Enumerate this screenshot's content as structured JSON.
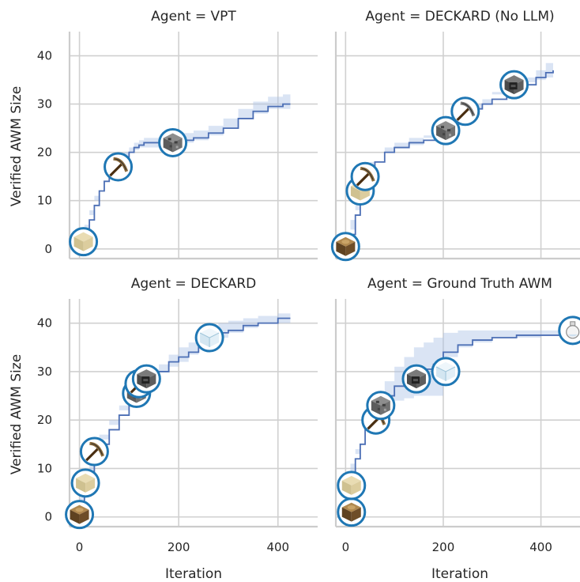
{
  "chart_data": [
    {
      "type": "line",
      "title": "Agent = VPT",
      "xlabel": "",
      "ylabel": "Verified AWM Size",
      "xlim": [
        -20,
        480
      ],
      "ylim": [
        -2,
        45
      ],
      "x_ticks": [
        0,
        200,
        400
      ],
      "y_ticks": [
        0,
        10,
        20,
        30,
        40
      ],
      "grid": true,
      "series": [
        {
          "x": [
            0,
            10,
            20,
            30,
            40,
            50,
            60,
            70,
            80,
            90,
            100,
            110,
            120,
            130,
            150,
            180,
            200,
            230,
            260,
            290,
            320,
            350,
            380,
            410,
            425
          ],
          "y": [
            1,
            3,
            6,
            9,
            12,
            14,
            16,
            17,
            18,
            19,
            20,
            21,
            21.5,
            22,
            22,
            22,
            22.5,
            23,
            24,
            25,
            27,
            28.5,
            29.5,
            30,
            30
          ],
          "y_lower": [
            0.5,
            2,
            5,
            8,
            11,
            13,
            15,
            16,
            17,
            18,
            19,
            20,
            20.5,
            21,
            21,
            21,
            21,
            22,
            22.5,
            23.5,
            25,
            27,
            28,
            29,
            29
          ],
          "y_upper": [
            1.5,
            4,
            7,
            10,
            13,
            15,
            17,
            18,
            19,
            20,
            21,
            22,
            22.5,
            23,
            23,
            23,
            24,
            24.5,
            25.5,
            27,
            29,
            30.5,
            31.5,
            32,
            32
          ]
        }
      ],
      "annotations": [
        {
          "x": 8,
          "y": 1.5,
          "icon": "sand-block-icon"
        },
        {
          "x": 78,
          "y": 17,
          "icon": "wooden-pickaxe-icon"
        },
        {
          "x": 188,
          "y": 22,
          "icon": "cobblestone-icon"
        }
      ]
    },
    {
      "type": "line",
      "title": "Agent = DECKARD (No LLM)",
      "xlabel": "",
      "ylabel": "",
      "xlim": [
        -20,
        480
      ],
      "ylim": [
        -2,
        45
      ],
      "x_ticks": [
        0,
        200,
        400
      ],
      "y_ticks": [
        0,
        10,
        20,
        30,
        40
      ],
      "grid": true,
      "series": [
        {
          "x": [
            0,
            10,
            20,
            30,
            40,
            50,
            60,
            80,
            100,
            130,
            160,
            200,
            220,
            240,
            260,
            280,
            300,
            330,
            360,
            390,
            410,
            425
          ],
          "y": [
            0,
            3,
            7,
            12,
            15,
            17,
            18,
            20,
            21,
            22,
            22.5,
            24,
            26,
            28,
            29,
            30,
            31,
            33,
            34,
            35.5,
            36.5,
            37
          ],
          "y_lower": [
            0,
            2,
            6,
            11,
            14,
            16,
            17,
            19,
            20,
            21,
            21.5,
            23,
            25,
            27,
            28,
            29,
            30,
            32,
            33,
            34.5,
            35,
            35.5
          ],
          "y_upper": [
            0,
            4,
            8,
            13,
            16,
            18,
            19,
            21,
            22,
            23,
            23.5,
            25,
            27,
            29,
            30,
            31,
            32.5,
            34,
            35.5,
            37,
            38.5,
            39
          ]
        }
      ],
      "annotations": [
        {
          "x": 0,
          "y": 0.5,
          "icon": "oak-log-icon"
        },
        {
          "x": 30,
          "y": 12,
          "icon": "sand-block-icon"
        },
        {
          "x": 40,
          "y": 15,
          "icon": "wooden-pickaxe-icon"
        },
        {
          "x": 205,
          "y": 24.5,
          "icon": "cobblestone-icon"
        },
        {
          "x": 245,
          "y": 28.5,
          "icon": "stone-pickaxe-icon"
        },
        {
          "x": 345,
          "y": 34,
          "icon": "furnace-icon"
        }
      ]
    },
    {
      "type": "line",
      "title": "Agent = DECKARD",
      "xlabel": "Iteration",
      "ylabel": "Verified AWM Size",
      "xlim": [
        -20,
        480
      ],
      "ylim": [
        -2,
        45
      ],
      "x_ticks": [
        0,
        200,
        400
      ],
      "y_ticks": [
        0,
        10,
        20,
        30,
        40
      ],
      "grid": true,
      "series": [
        {
          "x": [
            0,
            10,
            20,
            30,
            40,
            60,
            80,
            100,
            120,
            140,
            160,
            180,
            200,
            220,
            240,
            260,
            280,
            300,
            330,
            360,
            400,
            425
          ],
          "y": [
            0,
            5,
            8,
            12,
            15,
            18,
            21,
            24,
            27,
            29,
            30,
            32,
            33,
            34,
            35.5,
            37,
            38,
            38.5,
            39.5,
            40,
            41,
            41
          ],
          "y_lower": [
            0,
            4,
            7,
            11,
            14,
            17,
            20,
            23,
            26,
            27.5,
            28.5,
            30,
            31,
            32,
            33.5,
            35,
            36,
            37,
            38,
            39,
            40,
            40
          ],
          "y_upper": [
            0,
            6,
            9,
            13,
            16,
            19,
            22,
            25,
            28,
            30.5,
            31.5,
            33.5,
            35,
            36,
            37.5,
            39,
            40,
            40.5,
            41,
            41.5,
            42,
            42
          ]
        }
      ],
      "annotations": [
        {
          "x": 0,
          "y": 0.5,
          "icon": "oak-log-icon"
        },
        {
          "x": 12,
          "y": 7,
          "icon": "sand-block-icon"
        },
        {
          "x": 30,
          "y": 13.5,
          "icon": "wooden-pickaxe-icon"
        },
        {
          "x": 115,
          "y": 25.5,
          "icon": "cobblestone-icon"
        },
        {
          "x": 120,
          "y": 27.5,
          "icon": "stone-pickaxe-icon"
        },
        {
          "x": 135,
          "y": 28.5,
          "icon": "furnace-icon"
        },
        {
          "x": 262,
          "y": 37,
          "icon": "glass-block-icon"
        }
      ]
    },
    {
      "type": "line",
      "title": "Agent = Ground Truth AWM",
      "xlabel": "Iteration",
      "ylabel": "",
      "xlim": [
        -20,
        480
      ],
      "ylim": [
        -2,
        45
      ],
      "x_ticks": [
        0,
        200,
        400
      ],
      "y_ticks": [
        0,
        10,
        20,
        30,
        40
      ],
      "grid": true,
      "series": [
        {
          "x": [
            0,
            10,
            20,
            30,
            40,
            50,
            60,
            80,
            100,
            120,
            140,
            160,
            180,
            200,
            230,
            260,
            300,
            350,
            400,
            460
          ],
          "y": [
            0,
            7,
            12,
            15,
            18,
            20,
            22,
            25,
            27,
            28.5,
            29.5,
            30.5,
            31.5,
            34,
            35.5,
            36.5,
            37,
            37.5,
            37.5,
            38.5
          ],
          "y_lower": [
            0,
            6,
            11,
            14,
            16,
            18,
            20,
            22,
            23,
            24,
            24.5,
            25,
            25,
            25,
            33,
            35,
            36,
            37,
            37,
            37.5
          ],
          "y_upper": [
            0,
            8,
            13,
            16,
            20,
            22,
            25,
            28,
            31,
            33,
            35,
            36,
            37,
            38,
            38.5,
            38.5,
            38.5,
            38.5,
            38.5,
            39
          ]
        }
      ],
      "annotations": [
        {
          "x": 12,
          "y": 1,
          "icon": "oak-log-icon"
        },
        {
          "x": 12,
          "y": 6.5,
          "icon": "sand-block-icon"
        },
        {
          "x": 62,
          "y": 20,
          "icon": "wooden-pickaxe-icon"
        },
        {
          "x": 72,
          "y": 23,
          "icon": "cobblestone-icon"
        },
        {
          "x": 145,
          "y": 28.5,
          "icon": "furnace-icon"
        },
        {
          "x": 205,
          "y": 30,
          "icon": "glass-block-icon"
        },
        {
          "x": 465,
          "y": 38.5,
          "icon": "potion-bottle-icon"
        }
      ]
    }
  ]
}
